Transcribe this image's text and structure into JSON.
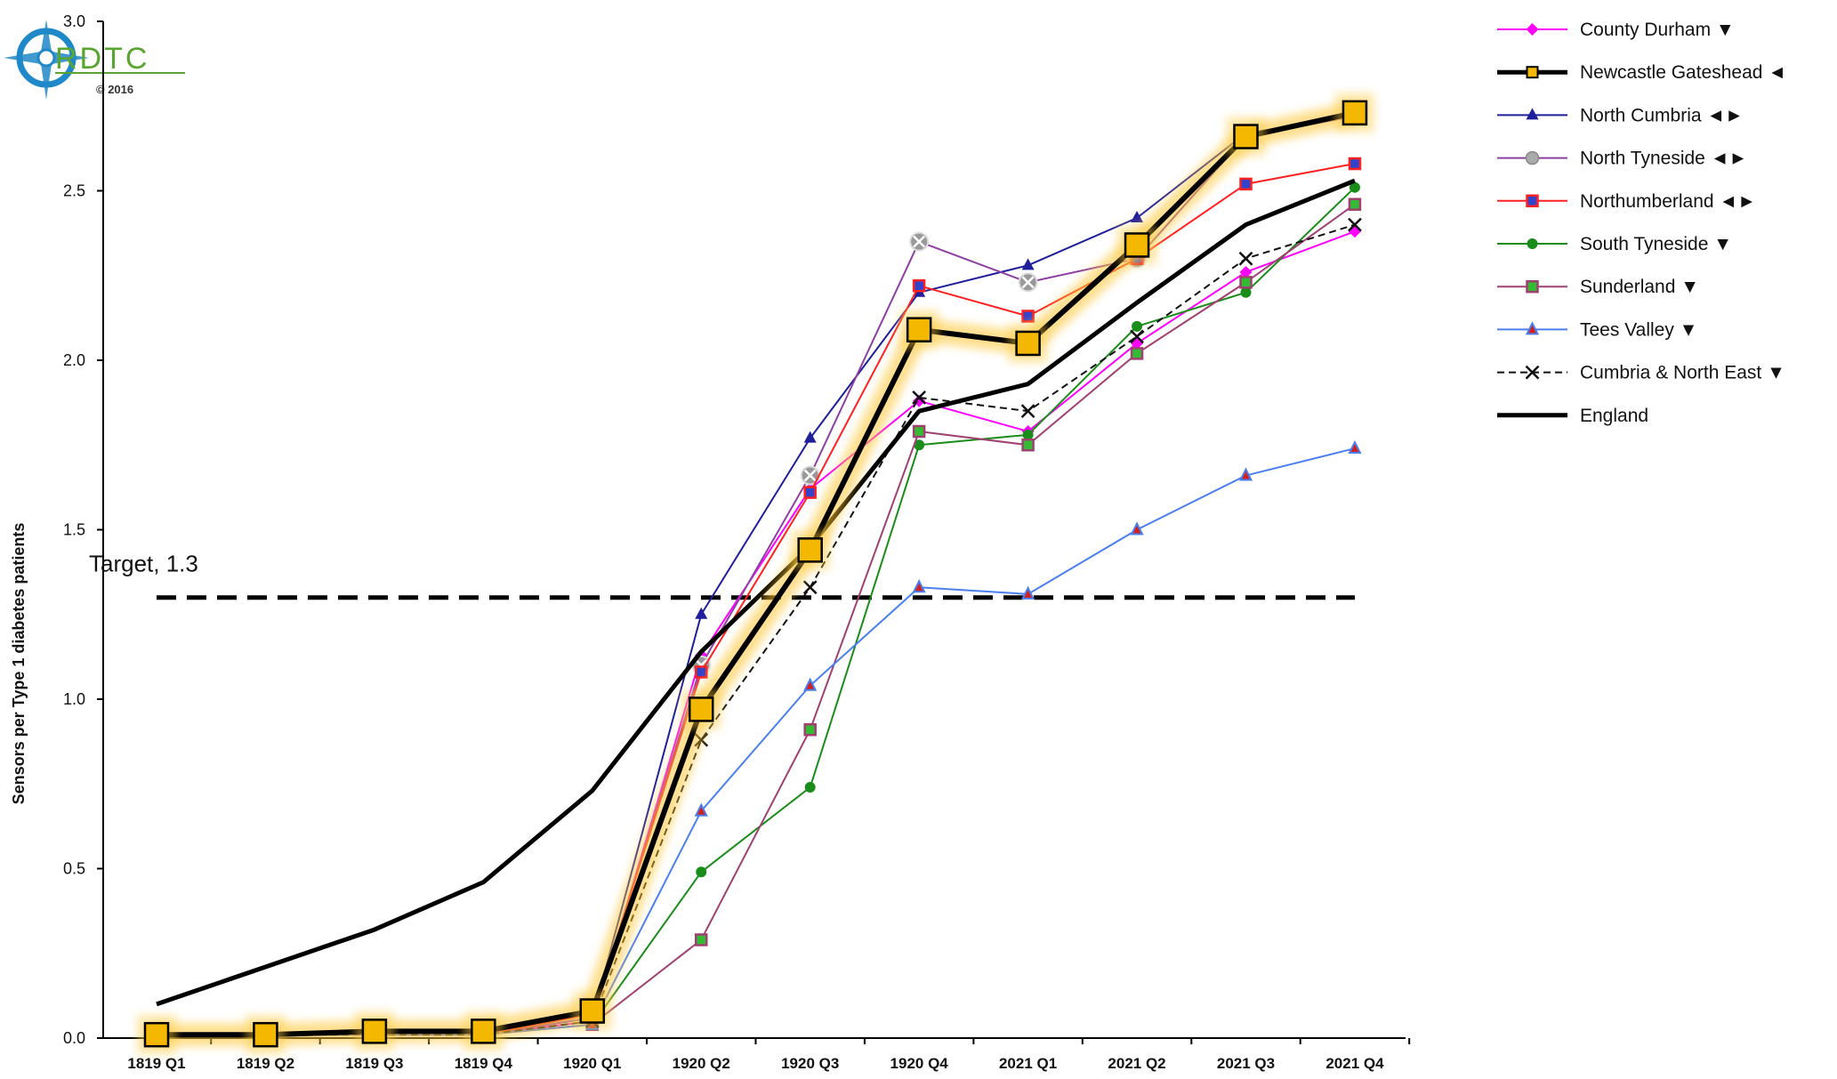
{
  "logo": {
    "text": "RDTC",
    "copyright": "© 2016"
  },
  "chart_data": {
    "type": "line",
    "title": "",
    "xlabel": "",
    "ylabel": "Sensors per Type 1 diabetes patients",
    "ylim": [
      0,
      3.0
    ],
    "yticks": [
      "0.0",
      "0.5",
      "1.0",
      "1.5",
      "2.0",
      "2.5",
      "3.0"
    ],
    "categories": [
      "1819 Q1",
      "1819 Q2",
      "1819 Q3",
      "1819 Q4",
      "1920 Q1",
      "1920 Q2",
      "1920 Q3",
      "1920 Q4",
      "2021 Q1",
      "2021 Q2",
      "2021 Q3",
      "2021 Q4"
    ],
    "grid": false,
    "legend_position": "right",
    "target": {
      "label": "Target, 1.3",
      "value": 1.3
    },
    "series": [
      {
        "name": "County Durham ▼",
        "color": "#ff00ff",
        "marker": "diamond",
        "dash": false,
        "values": [
          0.01,
          0.01,
          0.01,
          0.01,
          0.05,
          1.13,
          1.62,
          1.88,
          1.79,
          2.05,
          2.26,
          2.38
        ]
      },
      {
        "name": "Newcastle Gateshead ◄",
        "color": "#000000",
        "marker": "square-big",
        "dash": false,
        "highlight": true,
        "values": [
          0.01,
          0.01,
          0.02,
          0.02,
          0.08,
          0.97,
          1.44,
          2.09,
          2.05,
          2.34,
          2.66,
          2.73
        ]
      },
      {
        "name": "North Cumbria ◄►",
        "color": "#1f1f9c",
        "marker": "triangle",
        "dash": false,
        "values": [
          0.01,
          0.01,
          0.01,
          0.01,
          0.06,
          1.25,
          1.77,
          2.2,
          2.28,
          2.42,
          2.67,
          2.72
        ]
      },
      {
        "name": "North Tyneside ◄►",
        "color": "#8e3fa3",
        "marker": "circle-x",
        "dash": false,
        "values": [
          0.01,
          0.01,
          0.01,
          0.01,
          0.06,
          1.1,
          1.66,
          2.35,
          2.23,
          2.3,
          2.66,
          2.72
        ]
      },
      {
        "name": "Northumberland ◄►",
        "color": "#ff2020",
        "marker": "square-blue",
        "dash": false,
        "values": [
          0.01,
          0.01,
          0.01,
          0.01,
          0.07,
          1.08,
          1.61,
          2.22,
          2.13,
          2.3,
          2.52,
          2.58
        ]
      },
      {
        "name": "South Tyneside ▼",
        "color": "#1a8c1a",
        "marker": "dot",
        "dash": false,
        "values": [
          0.01,
          0.01,
          0.01,
          0.01,
          0.04,
          0.49,
          0.74,
          1.75,
          1.78,
          2.1,
          2.2,
          2.51
        ]
      },
      {
        "name": "Sunderland ▼",
        "color": "#a04070",
        "marker": "square-green",
        "dash": false,
        "values": [
          0.01,
          0.01,
          0.01,
          0.01,
          0.04,
          0.29,
          0.91,
          1.79,
          1.75,
          2.02,
          2.23,
          2.46
        ]
      },
      {
        "name": "Tees Valley ▼",
        "color": "#4a7ff0",
        "marker": "triangle-red",
        "dash": false,
        "values": [
          0.01,
          0.01,
          0.01,
          0.01,
          0.04,
          0.67,
          1.04,
          1.33,
          1.31,
          1.5,
          1.66,
          1.74
        ]
      },
      {
        "name": "Cumbria & North East ▼",
        "color": "#111111",
        "marker": "x",
        "dash": true,
        "values": [
          0.01,
          0.01,
          0.01,
          0.01,
          0.05,
          0.88,
          1.33,
          1.89,
          1.85,
          2.07,
          2.3,
          2.4
        ]
      },
      {
        "name": "England",
        "color": "#000000",
        "marker": "none",
        "dash": false,
        "thick": true,
        "values": [
          0.1,
          0.21,
          0.32,
          0.46,
          0.73,
          1.14,
          1.45,
          1.85,
          1.93,
          2.17,
          2.4,
          2.53
        ]
      }
    ]
  }
}
